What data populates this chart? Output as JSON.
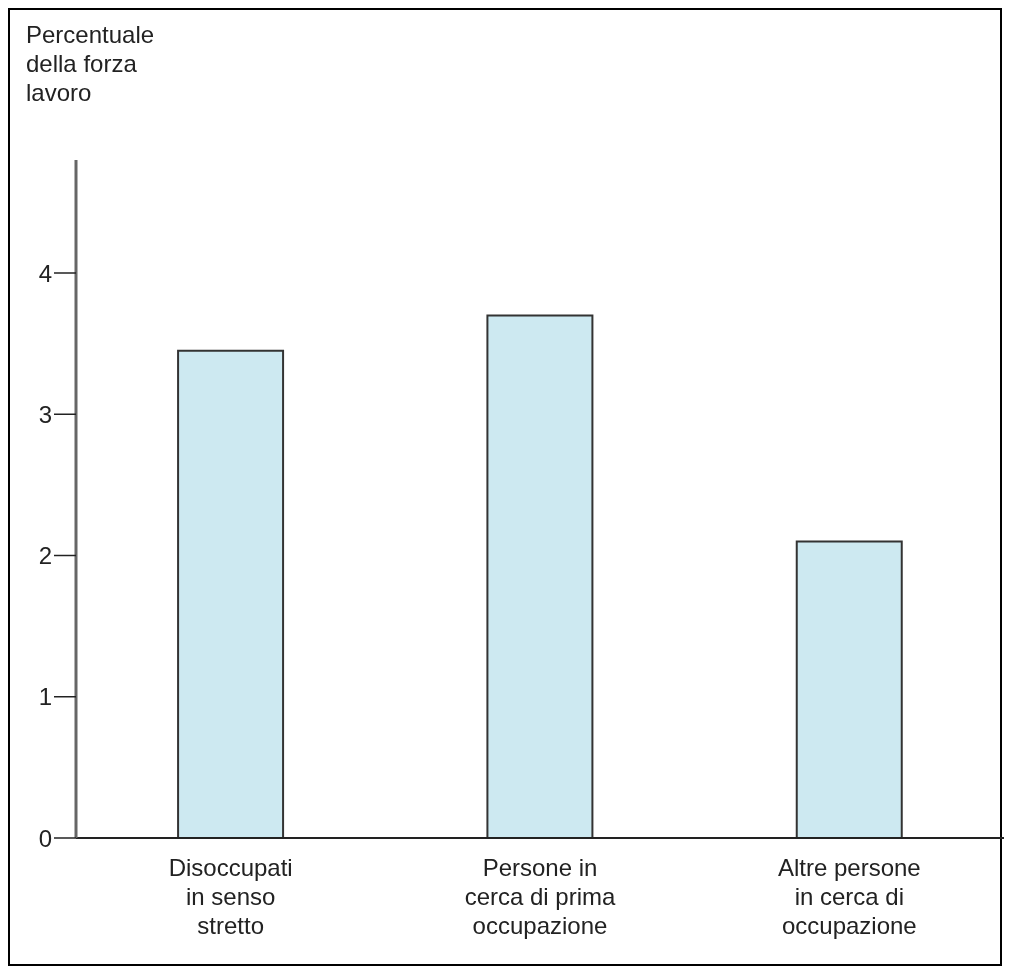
{
  "chart_data": {
    "type": "bar",
    "ylabel": "Percentuale\ndella forza\nlavoro",
    "categories": [
      "Disoccupati\nin senso\nstretto",
      "Persone in\ncerca di prima\noccupazione",
      "Altre persone\nin cerca di\noccupazione"
    ],
    "values": [
      3.45,
      3.7,
      2.1
    ],
    "color": "#cde9f1",
    "ylim": [
      0,
      4.8
    ],
    "yticks": [
      0,
      1,
      2,
      3,
      4
    ],
    "grid": false
  }
}
